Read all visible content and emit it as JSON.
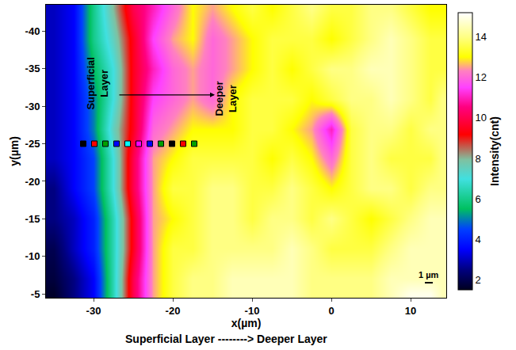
{
  "chart_data": {
    "type": "heatmap",
    "x_label": "x(µm)",
    "y_label": "y(µm)",
    "caption": "Superficial Layer --------> Deeper Layer",
    "x": [
      -35,
      -32.5,
      -30,
      -27.5,
      -25,
      -22.5,
      -20,
      -17.5,
      -15,
      -12.5,
      -10,
      -7.5,
      -5,
      -2.5,
      0,
      2.5,
      5,
      7.5,
      10,
      12.5,
      14
    ],
    "y": [
      -43,
      -39,
      -35,
      -31,
      -27,
      -23,
      -19,
      -15,
      -11,
      -7,
      -5
    ],
    "z": [
      [
        3,
        3.5,
        6,
        8,
        10,
        11,
        12,
        13,
        12.5,
        13,
        13.5,
        13,
        13.5,
        14,
        13.5,
        13.5,
        14,
        14,
        13.5,
        13,
        13
      ],
      [
        3,
        3.5,
        6,
        7.5,
        9.5,
        11.5,
        12.5,
        13,
        12,
        12.5,
        13,
        13.5,
        13.5,
        13.5,
        13,
        13.5,
        14,
        14.5,
        14,
        13.5,
        13.5
      ],
      [
        3,
        3.5,
        5.5,
        7,
        9.5,
        11,
        12,
        12.5,
        12,
        12.5,
        13,
        13.5,
        13,
        13.5,
        14,
        14,
        14.5,
        14.5,
        14,
        13.5,
        13.5
      ],
      [
        3,
        3.5,
        5,
        7,
        9.5,
        11.5,
        12,
        12.5,
        12,
        13,
        13.5,
        13.5,
        13.5,
        13,
        13.5,
        14,
        14,
        14.5,
        14,
        13.5,
        14
      ],
      [
        3,
        3.5,
        5,
        7.5,
        9.5,
        12,
        12.5,
        13,
        13,
        13,
        13.5,
        13.5,
        13,
        12.5,
        11,
        13.5,
        14,
        14,
        13.5,
        14,
        14
      ],
      [
        3,
        3.5,
        4.5,
        7,
        10,
        12.5,
        13,
        13.5,
        13.5,
        13.5,
        13.5,
        13,
        13.5,
        13,
        12,
        13.5,
        14,
        13.5,
        13.5,
        13.5,
        14
      ],
      [
        2.5,
        3.5,
        4.5,
        7,
        10,
        12.5,
        13.5,
        13.5,
        14,
        14,
        13.5,
        13.5,
        14,
        13.5,
        13,
        13.5,
        14,
        14,
        13.5,
        14,
        14
      ],
      [
        2.5,
        3,
        4,
        6.5,
        9.5,
        12.5,
        13,
        13.5,
        14,
        14,
        13.5,
        14,
        14,
        13.5,
        14,
        13.5,
        13,
        13.5,
        14,
        14.5,
        14.5
      ],
      [
        2,
        3,
        4,
        6.5,
        9.5,
        12.5,
        13.5,
        13.5,
        14,
        14,
        14,
        14,
        14.5,
        14,
        13.5,
        13.5,
        13.5,
        14,
        14.5,
        14.5,
        14.5
      ],
      [
        1.8,
        2.5,
        3.5,
        6.5,
        10,
        12.5,
        13.5,
        14,
        14,
        14.5,
        14.5,
        14.5,
        14.5,
        14,
        14,
        14,
        14,
        14.5,
        14.5,
        14.5,
        14.5
      ],
      [
        1.6,
        2.5,
        3.5,
        6.5,
        10,
        12.5,
        13.5,
        14,
        14,
        14.5,
        14.5,
        14.5,
        14.5,
        14,
        14,
        14,
        14,
        14.5,
        15,
        15,
        14.5
      ]
    ],
    "xlim": [
      -36,
      14.5
    ],
    "xticks": [
      -30,
      -20,
      -10,
      0,
      10
    ],
    "ylim": [
      -4.5,
      -43.5
    ],
    "yticks": [
      -40,
      -35,
      -30,
      -25,
      -20,
      -15,
      -10,
      -5
    ],
    "colorbar": {
      "title": "Intensity(cnt)",
      "range": [
        1.5,
        15.2
      ],
      "ticks": [
        2,
        4,
        6,
        8,
        10,
        12,
        14
      ]
    },
    "markers": {
      "x": [
        -31.3,
        -29.9,
        -28.5,
        -27.1,
        -25.7,
        -24.3,
        -22.9,
        -21.5,
        -20.1,
        -18.7,
        -17.3
      ],
      "y": [
        -25,
        -25,
        -25,
        -25,
        -25,
        -25,
        -25,
        -25,
        -25,
        -25,
        -25
      ],
      "colors": [
        "#000000",
        "#ff0000",
        "#00a000",
        "#0000ff",
        "#00ffff",
        "#ff00ff",
        "#0000ff",
        "#00a000",
        "#000000",
        "#ff0000",
        "#00a000"
      ],
      "marker": "square"
    },
    "layer_labels": [
      {
        "text": "Superficial Layer",
        "x": -29.5,
        "y": -33
      },
      {
        "text": "Deeper Layer",
        "x": -13.3,
        "y": -31
      }
    ],
    "scale_label": {
      "text": "1 µm",
      "x": 12.3,
      "y": -7.6
    }
  }
}
